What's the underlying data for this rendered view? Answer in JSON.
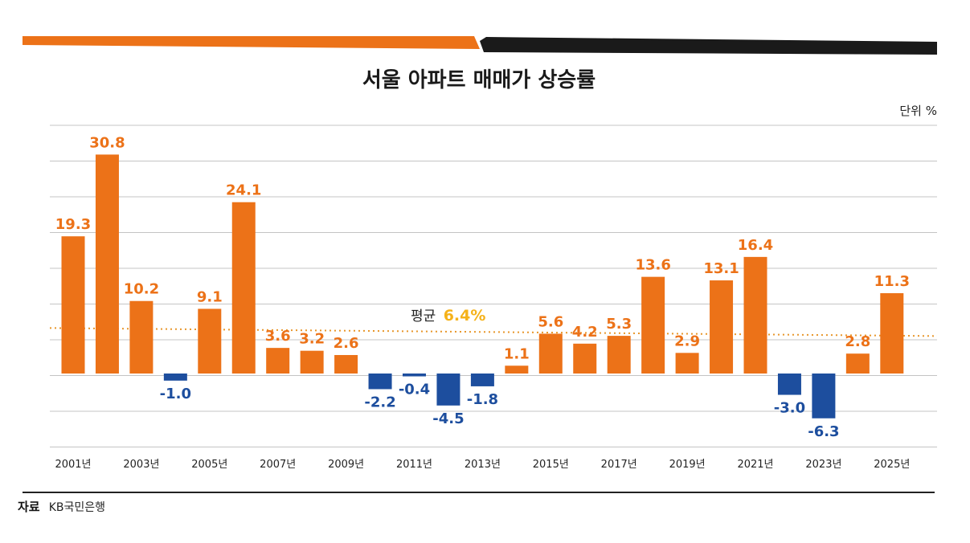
{
  "colors": {
    "positive": "#ec7218",
    "negative": "#1d4e9e",
    "average": "#f5b21a",
    "avg_line": "#e8962a",
    "dark_band": "#1a1a1a"
  },
  "chart_data": {
    "type": "bar",
    "title": "서울 아파트 매매가 상승률",
    "unit": "단위 %",
    "source_label": "자료",
    "source_text": "KB국민은행",
    "average": {
      "label": "평균",
      "value": 6.4,
      "display": "6.4%"
    },
    "ylim": [
      -10,
      35
    ],
    "categories": [
      "2001",
      "2002",
      "2003",
      "2004",
      "2005",
      "2006",
      "2007",
      "2008",
      "2009",
      "2010",
      "2011",
      "2012",
      "2013",
      "2014",
      "2015",
      "2016",
      "2017",
      "2018",
      "2019",
      "2020",
      "2021",
      "2022",
      "2023",
      "2024",
      "2025"
    ],
    "x_tick_labels": [
      "2001년",
      "2003년",
      "2005년",
      "2007년",
      "2009년",
      "2011년",
      "2013년",
      "2015년",
      "2017년",
      "2019년",
      "2021년",
      "2023년",
      "2025년"
    ],
    "series": [
      {
        "name": "상승률",
        "values": [
          19.3,
          30.8,
          10.2,
          -1.0,
          9.1,
          24.1,
          3.6,
          3.2,
          2.6,
          -2.2,
          -0.4,
          -4.5,
          -1.8,
          1.1,
          5.6,
          4.2,
          5.3,
          13.6,
          2.9,
          13.1,
          16.4,
          -3.0,
          -6.3,
          2.8,
          11.3
        ],
        "labels": [
          "19.3",
          "30.8",
          "10.2",
          "-1.0",
          "9.1",
          "24.1",
          "3.6",
          "3.2",
          "2.6",
          "-2.2",
          "-0.4",
          "-4.5",
          "-1.8",
          "1.1",
          "5.6",
          "4.2",
          "5.3",
          "13.6",
          "2.9",
          "13.1",
          "16.4",
          "-3.0",
          "-6.3",
          "2.8",
          "11.3"
        ]
      }
    ]
  }
}
